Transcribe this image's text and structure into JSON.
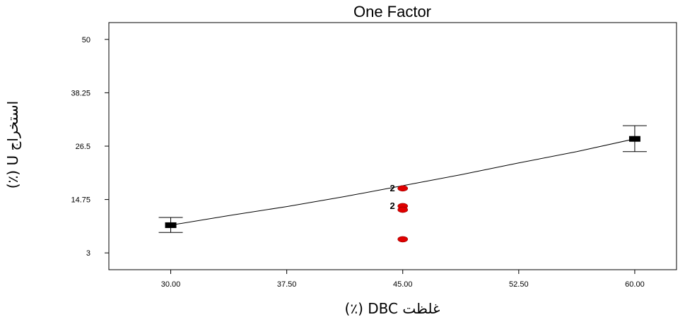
{
  "chart_data": {
    "type": "line",
    "title": "One Factor",
    "xlabel": "غلظت DBC (٪)",
    "ylabel": "استخراج U (٪)",
    "xlim": [
      26,
      62.7
    ],
    "ylim": [
      -0.7,
      53.7
    ],
    "x_ticks": [
      "30.00",
      "37.50",
      "45.00",
      "52.50",
      "60.00"
    ],
    "y_ticks": [
      "3",
      "14.75",
      "26.5",
      "38.25",
      "50"
    ],
    "grid": false,
    "fit_line": {
      "x": [
        30,
        33.75,
        37.5,
        41.25,
        45,
        48.75,
        52.5,
        56.25,
        60
      ],
      "y": [
        9.1,
        11.2,
        13.2,
        15.4,
        17.8,
        20.2,
        22.8,
        25.3,
        28.1
      ]
    },
    "design_points": [
      {
        "x": 30,
        "y": 9.1,
        "ci_low": 7.5,
        "ci_high": 10.8
      },
      {
        "x": 60,
        "y": 28.1,
        "ci_low": 25.3,
        "ci_high": 31.0
      }
    ],
    "observations": [
      {
        "x": 45,
        "y": 17.2,
        "count": "2"
      },
      {
        "x": 45,
        "y": 13.3,
        "count": "2"
      },
      {
        "x": 45,
        "y": 12.5,
        "count": ""
      },
      {
        "x": 45,
        "y": 6.0,
        "count": ""
      }
    ],
    "colors": {
      "observation": "#e00000",
      "design_point": "#000000",
      "line": "#000000"
    }
  }
}
